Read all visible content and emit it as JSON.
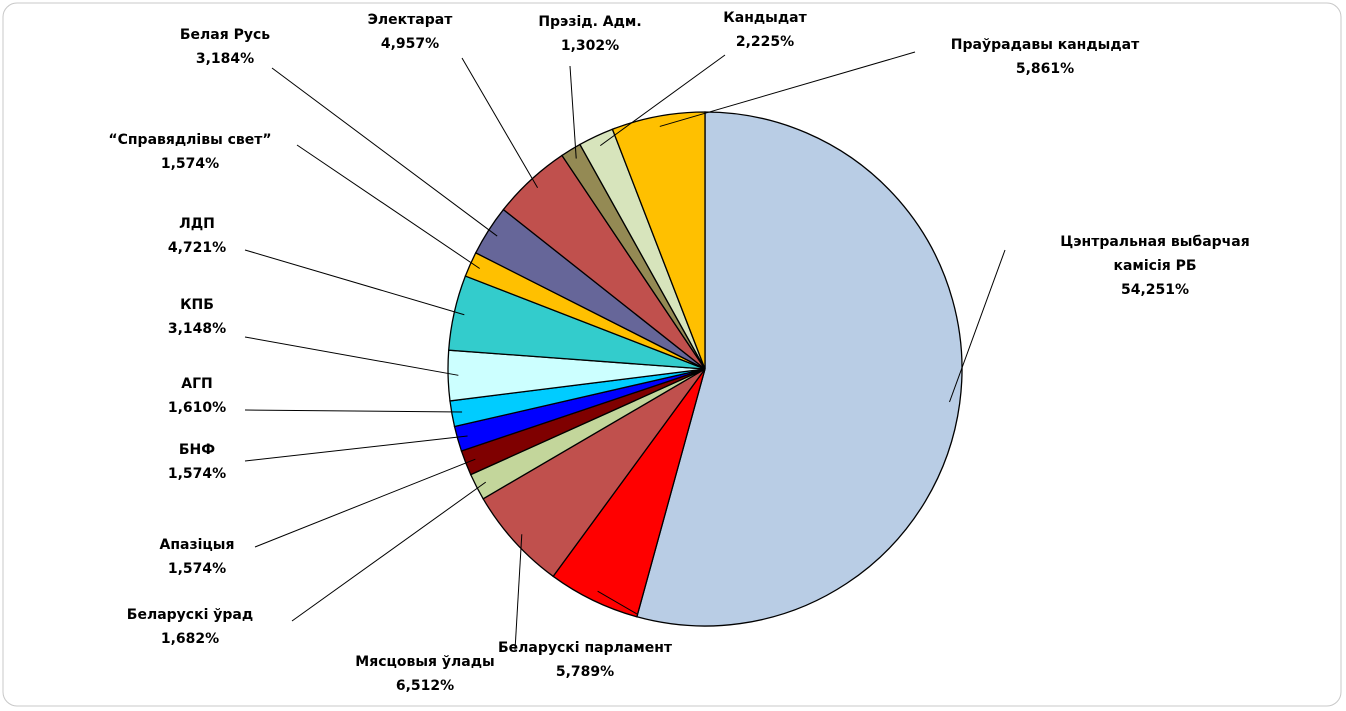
{
  "chart_data": {
    "type": "pie",
    "categories": [
      "Цэнтральная выбарчая камісія РБ",
      "Беларускі парламент",
      "Мясцовыя ўлады",
      "Беларускі ўрад",
      "Апазіцыя",
      "БНФ",
      "АГП",
      "КПБ",
      "ЛДП",
      "“Справядлівы свет”",
      "Белая Русь",
      "Электарат",
      "Прэзід. Адм.",
      "Кандыдат",
      "Праўрадавы кандыдат"
    ],
    "values": [
      54.251,
      5.789,
      6.512,
      1.682,
      1.574,
      1.574,
      1.61,
      3.148,
      4.721,
      1.574,
      3.184,
      4.957,
      1.302,
      2.225,
      5.861
    ],
    "value_labels": [
      "54,251%",
      "5,789%",
      "6,512%",
      "1,682%",
      "1,574%",
      "1,574%",
      "1,610%",
      "3,148%",
      "4,721%",
      "1,574%",
      "3,184%",
      "4,957%",
      "1,302%",
      "2,225%",
      "5,861%"
    ],
    "colors": [
      "#b9cde5",
      "#ff0000",
      "#c0504d",
      "#c3d69b",
      "#7f0000",
      "#0000ff",
      "#00ccff",
      "#ccffff",
      "#33cccc",
      "#ffc000",
      "#666699",
      "#c0504d",
      "#948a54",
      "#d7e4bc",
      "#ffc000"
    ]
  }
}
